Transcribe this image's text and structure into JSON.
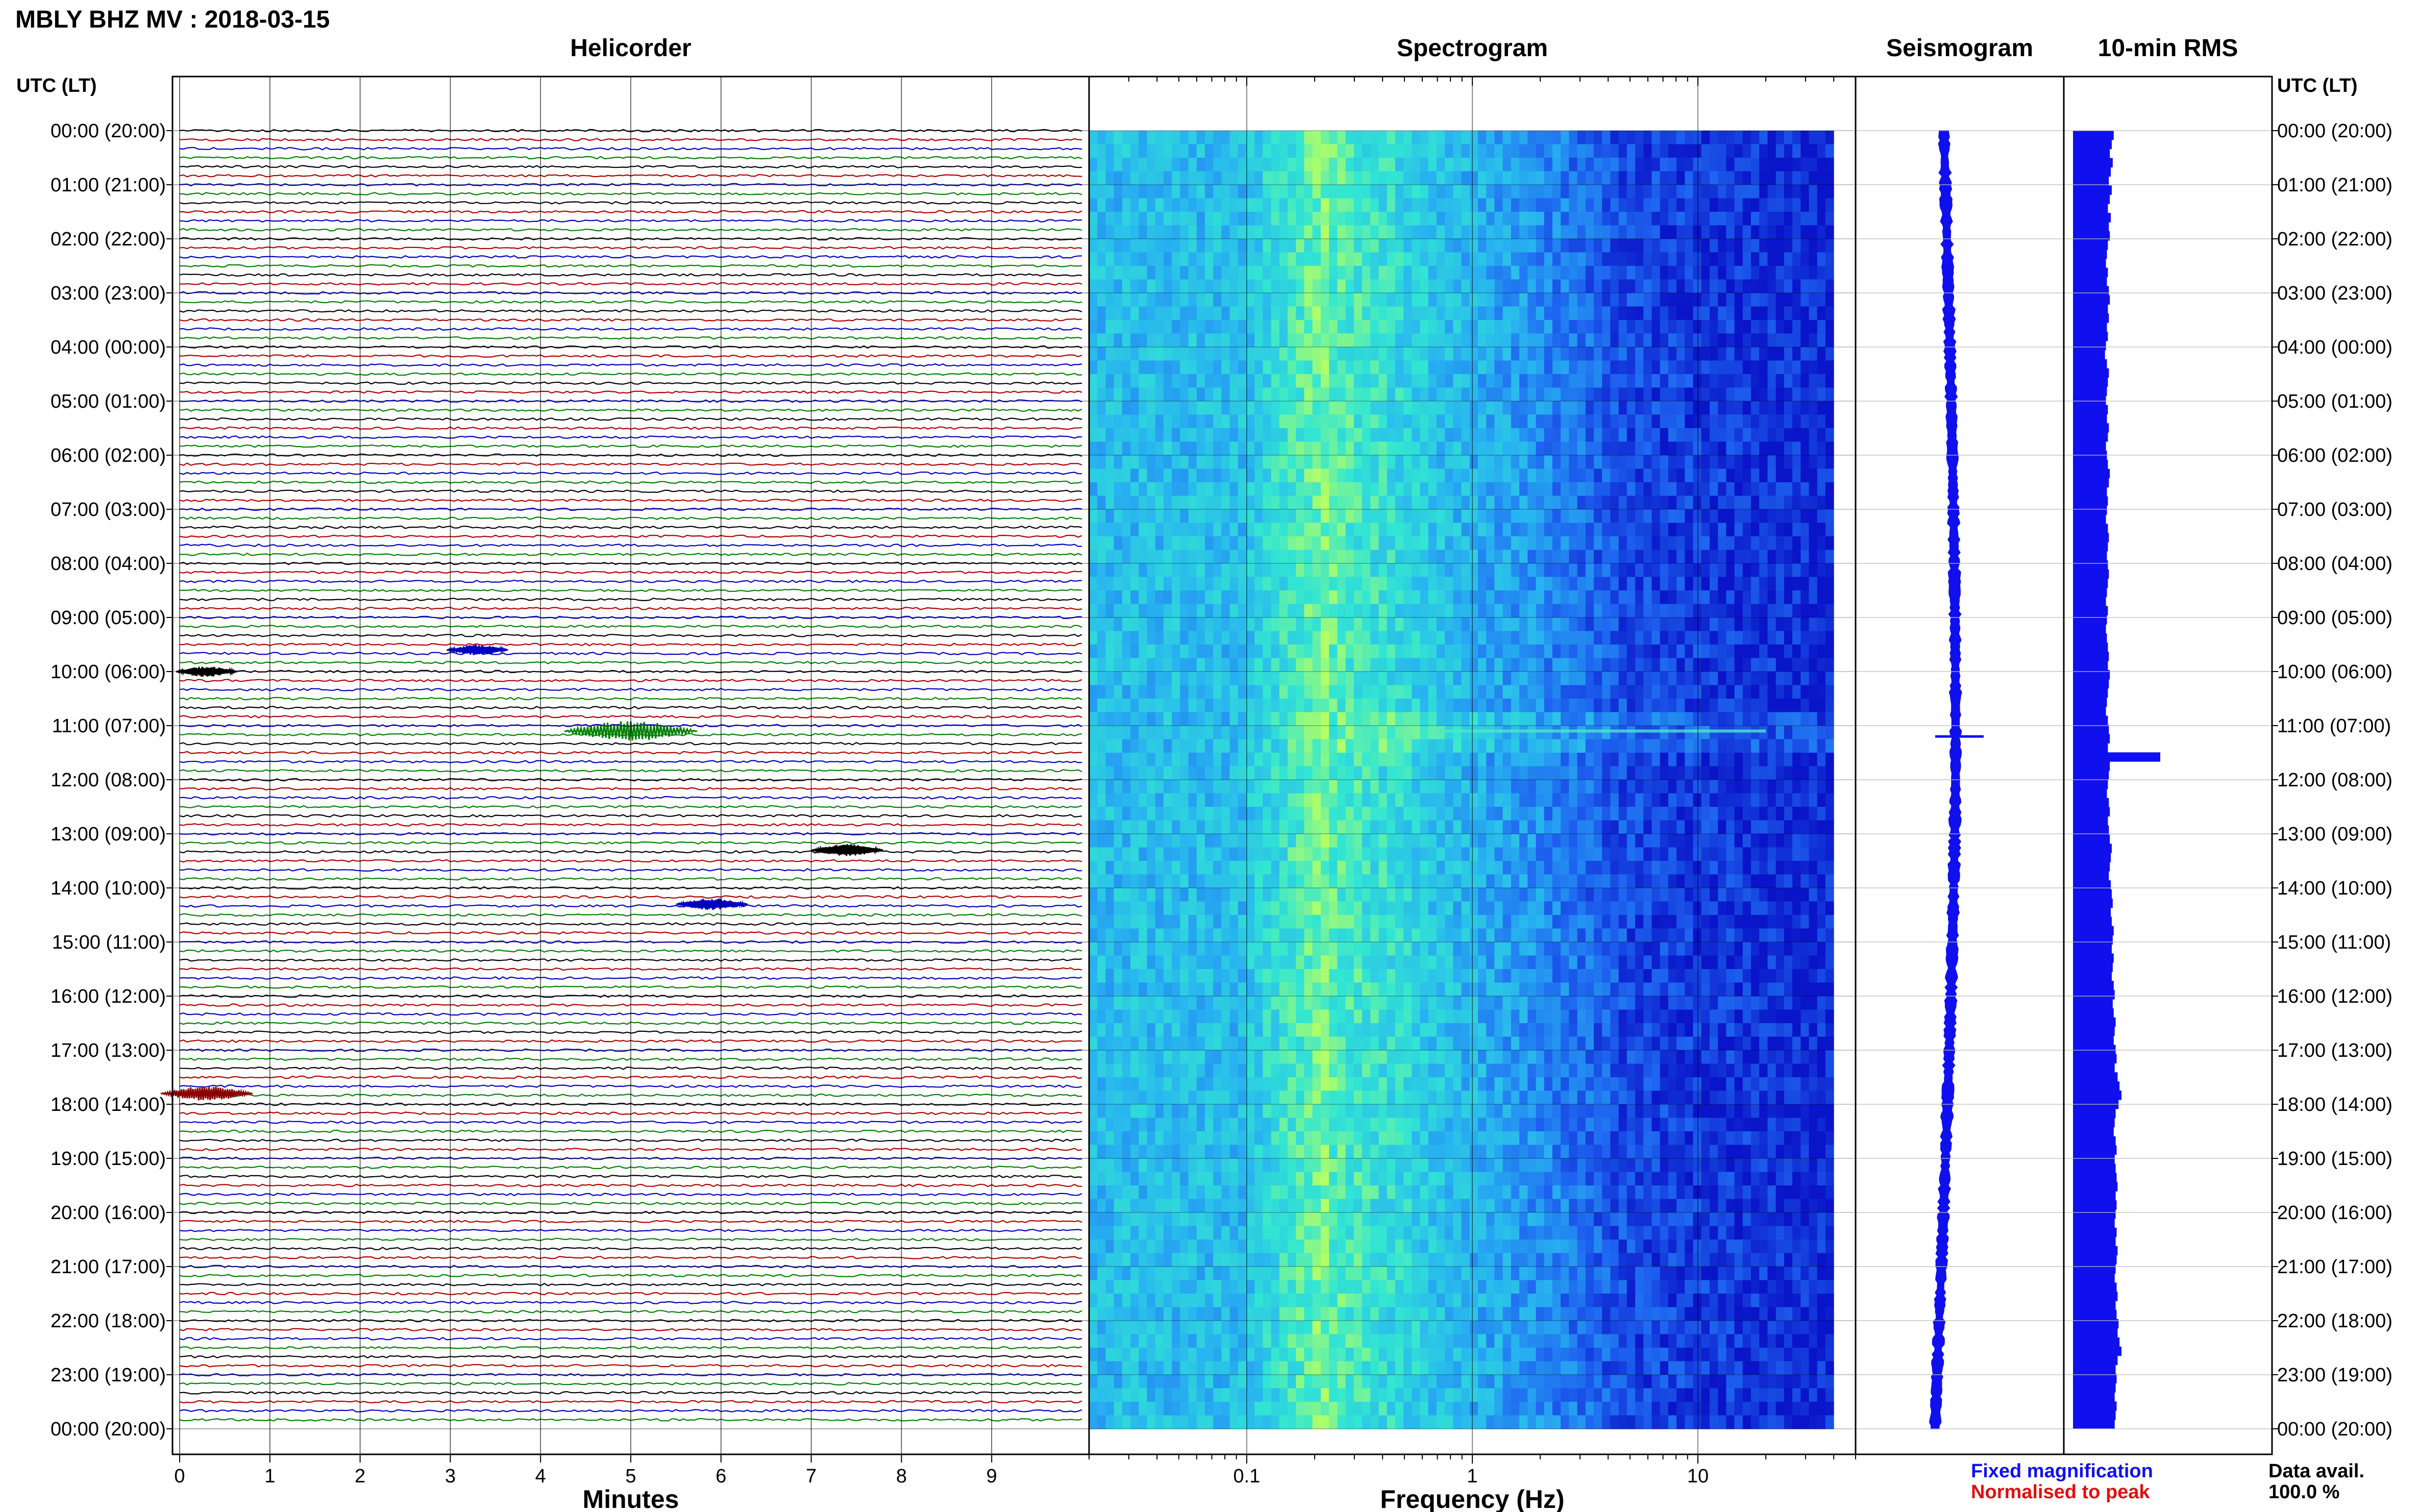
{
  "title": "MBLY BHZ MV : 2018-03-15",
  "panels": {
    "helicorder": "Helicorder",
    "spectrogram": "Spectrogram",
    "seismogram": "Seismogram",
    "rms": "10-min RMS"
  },
  "axes": {
    "left_header": "UTC (LT)",
    "right_header": "UTC (LT)",
    "minutes_label": "Minutes",
    "frequency_label": "Frequency (Hz)"
  },
  "legend": {
    "fixed": "Fixed magnification",
    "fixed_color": "#1010ee",
    "normalised": "Normalised to peak",
    "normalised_color": "#e01010"
  },
  "data_avail": {
    "label": "Data avail.",
    "value": "100.0 %"
  },
  "chart_data": {
    "type": "heatmap",
    "title": "MBLY BHZ MV : 2018-03-15",
    "time_labels": [
      "00:00 (20:00)",
      "01:00 (21:00)",
      "02:00 (22:00)",
      "03:00 (23:00)",
      "04:00 (00:00)",
      "05:00 (01:00)",
      "06:00 (02:00)",
      "07:00 (03:00)",
      "08:00 (04:00)",
      "09:00 (05:00)",
      "10:00 (06:00)",
      "11:00 (07:00)",
      "12:00 (08:00)",
      "13:00 (09:00)",
      "14:00 (10:00)",
      "15:00 (11:00)",
      "16:00 (12:00)",
      "17:00 (13:00)",
      "18:00 (14:00)",
      "19:00 (15:00)",
      "20:00 (16:00)",
      "21:00 (17:00)",
      "22:00 (18:00)",
      "23:00 (19:00)",
      "00:00 (20:00)"
    ],
    "helicorder": {
      "xlabel": "Minutes",
      "xlim": [
        0,
        10
      ],
      "xticks": [
        "0",
        "1",
        "2",
        "3",
        "4",
        "5",
        "6",
        "7",
        "8",
        "9"
      ],
      "trace_colors": [
        "#000000",
        "#b00000",
        "#0000c0",
        "#008000"
      ],
      "events": [
        {
          "hour": 11.1,
          "minute": 5.0,
          "color": "#008000",
          "amplitude": 1.0
        },
        {
          "hour": 17.8,
          "minute": 0.3,
          "color": "#8b0000",
          "amplitude": 0.6
        },
        {
          "hour": 13.3,
          "minute": 7.4,
          "color": "#000000",
          "amplitude": 0.4
        },
        {
          "hour": 14.3,
          "minute": 5.9,
          "color": "#0000c0",
          "amplitude": 0.4
        },
        {
          "hour": 9.6,
          "minute": 3.3,
          "color": "#0000c0",
          "amplitude": 0.3
        },
        {
          "hour": 10.0,
          "minute": 0.3,
          "color": "#000000",
          "amplitude": 0.3
        }
      ]
    },
    "spectrogram": {
      "xlabel": "Frequency (Hz)",
      "xscale": "log",
      "xlim": [
        0.02,
        50
      ],
      "xticks": [
        "0.1",
        "1",
        "10"
      ],
      "colormap": [
        "#0a14c8",
        "#1e64f0",
        "#28b4f0",
        "#32e6d2",
        "#b4ff64"
      ]
    },
    "seismogram": {
      "description_free": true,
      "peak_hour": 11.2,
      "color": "#1010ee"
    },
    "rms": {
      "color": "#1010ee",
      "values": [
        0.42,
        0.4,
        0.38,
        0.41,
        0.39,
        0.37,
        0.4,
        0.38,
        0.36,
        0.39,
        0.37,
        0.38,
        0.36,
        0.35,
        0.34,
        0.36,
        0.35,
        0.37,
        0.38,
        0.36,
        0.37,
        0.35,
        0.36,
        0.34,
        0.33,
        0.35,
        0.37,
        0.36,
        0.35,
        0.34,
        0.36,
        0.35,
        0.37,
        0.36,
        0.34,
        0.35,
        0.36,
        0.38,
        0.37,
        0.35,
        0.36,
        0.35,
        0.34,
        0.36,
        0.37,
        0.36,
        0.35,
        0.36,
        0.37,
        0.36,
        0.35,
        0.34,
        0.36,
        0.35,
        0.34,
        0.35,
        0.36,
        0.37,
        0.36,
        0.38,
        0.37,
        0.36,
        0.35,
        0.34,
        0.36,
        0.37,
        0.38,
        0.36,
        0.9,
        0.38,
        0.37,
        0.36,
        0.35,
        0.37,
        0.38,
        0.36,
        0.37,
        0.38,
        0.4,
        0.39,
        0.38,
        0.37,
        0.39,
        0.4,
        0.41,
        0.39,
        0.4,
        0.42,
        0.41,
        0.4,
        0.42,
        0.41,
        0.4,
        0.42,
        0.43,
        0.41,
        0.42,
        0.44,
        0.43,
        0.42,
        0.44,
        0.45,
        0.43,
        0.46,
        0.48,
        0.5,
        0.47,
        0.44,
        0.43,
        0.42,
        0.44,
        0.45,
        0.43,
        0.44,
        0.45,
        0.46,
        0.44,
        0.45,
        0.44,
        0.43,
        0.45,
        0.44,
        0.46,
        0.45,
        0.44,
        0.43,
        0.45,
        0.46,
        0.44,
        0.45,
        0.47,
        0.46,
        0.48,
        0.5,
        0.46,
        0.44,
        0.45,
        0.44,
        0.43,
        0.45,
        0.44,
        0.43
      ]
    }
  }
}
